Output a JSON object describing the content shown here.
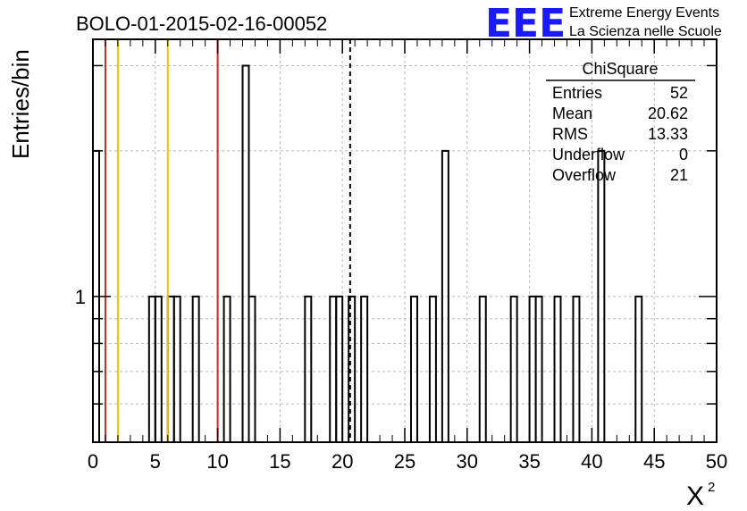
{
  "title": "BOLO-01-2015-02-16-00052",
  "logo": {
    "mark": "EEE",
    "line1": "Extreme Energy Events",
    "line2": "La Scienza nelle Scuole",
    "color": "#1a1aff"
  },
  "chart_data": {
    "type": "bar",
    "histogram": true,
    "xlabel": "X",
    "xlabel_superscript": "2",
    "ylabel": "Entries/bin",
    "xlim": [
      0,
      50
    ],
    "ylim": [
      0.5,
      3.4
    ],
    "yscale": "log",
    "bin_width": 0.5,
    "x_ticks": [
      0,
      5,
      10,
      15,
      20,
      25,
      30,
      35,
      40,
      45,
      50
    ],
    "y_tick_labels": [
      {
        "value": 1,
        "label": "1"
      }
    ],
    "grid": true,
    "bins": [
      {
        "x": 0.0,
        "count": 2
      },
      {
        "x": 4.5,
        "count": 1
      },
      {
        "x": 5.0,
        "count": 1
      },
      {
        "x": 6.0,
        "count": 1
      },
      {
        "x": 6.5,
        "count": 1
      },
      {
        "x": 8.0,
        "count": 1
      },
      {
        "x": 10.5,
        "count": 1
      },
      {
        "x": 12.0,
        "count": 3
      },
      {
        "x": 12.5,
        "count": 1
      },
      {
        "x": 17.0,
        "count": 1
      },
      {
        "x": 19.0,
        "count": 1
      },
      {
        "x": 19.5,
        "count": 1
      },
      {
        "x": 20.5,
        "count": 1
      },
      {
        "x": 21.5,
        "count": 1
      },
      {
        "x": 25.5,
        "count": 1
      },
      {
        "x": 27.0,
        "count": 1
      },
      {
        "x": 28.0,
        "count": 2
      },
      {
        "x": 31.0,
        "count": 1
      },
      {
        "x": 33.5,
        "count": 1
      },
      {
        "x": 35.0,
        "count": 1
      },
      {
        "x": 35.5,
        "count": 1
      },
      {
        "x": 37.0,
        "count": 1
      },
      {
        "x": 38.5,
        "count": 1
      },
      {
        "x": 40.5,
        "count": 2
      },
      {
        "x": 43.5,
        "count": 1
      }
    ],
    "vertical_lines": [
      {
        "x": 1.0,
        "color": "#dd2222",
        "style": "solid"
      },
      {
        "x": 2.0,
        "color": "#f2c400",
        "style": "solid"
      },
      {
        "x": 6.0,
        "color": "#f2c400",
        "style": "solid"
      },
      {
        "x": 10.0,
        "color": "#dd2222",
        "style": "solid"
      },
      {
        "x": 20.62,
        "color": "#000000",
        "style": "dashed"
      }
    ],
    "stats": {
      "name": "ChiSquare",
      "rows": [
        {
          "label": "Entries",
          "value": "52"
        },
        {
          "label": "Mean",
          "value": "20.62"
        },
        {
          "label": "RMS",
          "value": "13.33"
        },
        {
          "label": "Underflow",
          "value": "0"
        },
        {
          "label": "Overflow",
          "value": "21"
        }
      ]
    }
  }
}
